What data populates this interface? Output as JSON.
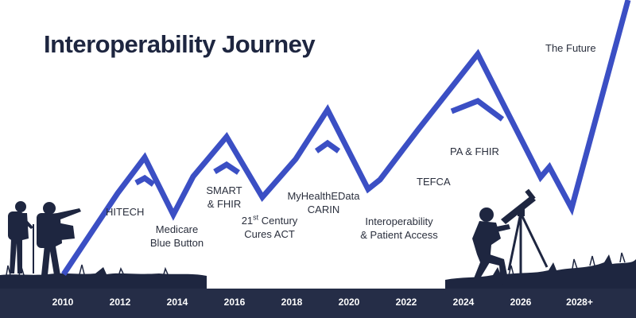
{
  "title": "Interoperability Journey",
  "colors": {
    "line": "#3b4fc4",
    "silhouette": "#1e2640",
    "axis_bar": "#252d47",
    "axis_text": "#ffffff"
  },
  "milestones": {
    "hitech": "HITECH",
    "medicare_line1": "Medicare",
    "medicare_line2": "Blue Button",
    "smart_line1": "SMART",
    "smart_line2": "& FHIR",
    "cures_num": "21",
    "cures_sup": "st",
    "cures_line1_rest": " Century",
    "cures_line2": "Cures ACT",
    "myhealth_line1": "MyHealthEData",
    "myhealth_line2": "CARIN",
    "interop_line1": "Interoperability",
    "interop_line2": "& Patient Access",
    "tefca": "TEFCA",
    "pa_fhir": "PA & FHIR",
    "future": "The Future"
  },
  "years": [
    "2010",
    "2012",
    "2014",
    "2016",
    "2018",
    "2020",
    "2022",
    "2024",
    "2026",
    "2028+"
  ],
  "icons": [
    "hikers-silhouette-icon",
    "stargazer-telescope-icon",
    "grass-icon"
  ]
}
